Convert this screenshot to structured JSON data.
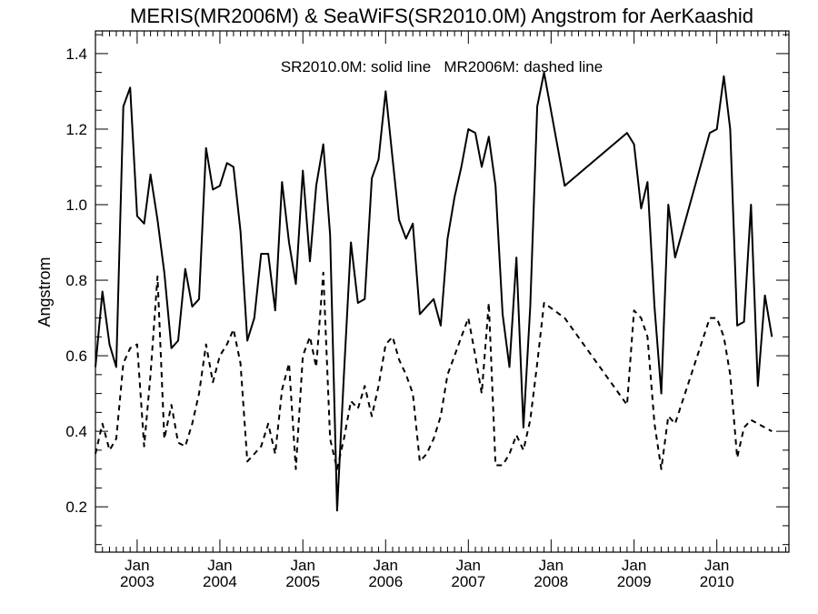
{
  "chart_data": {
    "type": "line",
    "title": "MERIS(MR2006M) & SeaWiFS(SR2010.0M)  Angstrom for AerKaashid",
    "annotation": "SR2010.0M: solid line   MR2006M: dashed line",
    "xlabel": "",
    "ylabel": "Angstrom",
    "xlim": [
      "2002-07-01",
      "2010-11-15"
    ],
    "ylim": [
      0.08,
      1.46
    ],
    "yticks": [
      "0.2",
      "0.4",
      "0.6",
      "0.8",
      "1.0",
      "1.2",
      "1.4"
    ],
    "x_month_labels": [
      "Jan",
      "Jan",
      "Jan",
      "Jan",
      "Jan",
      "Jan",
      "Jan",
      "Jan"
    ],
    "x_year_labels": [
      "2003",
      "2004",
      "2005",
      "2006",
      "2007",
      "2008",
      "2009",
      "2010"
    ],
    "x_year_dates": [
      "2003-01-01",
      "2004-01-01",
      "2005-01-01",
      "2006-01-01",
      "2007-01-01",
      "2008-01-01",
      "2009-01-01",
      "2010-01-01"
    ],
    "grid": false,
    "series": [
      {
        "name": "SR2010.0M",
        "style": "solid",
        "color": "#000000",
        "points": [
          [
            "2002-07-01",
            0.57
          ],
          [
            "2002-08-01",
            0.77
          ],
          [
            "2002-09-01",
            0.63
          ],
          [
            "2002-10-01",
            0.57
          ],
          [
            "2002-11-01",
            1.26
          ],
          [
            "2002-12-01",
            1.31
          ],
          [
            "2003-01-01",
            0.97
          ],
          [
            "2003-02-01",
            0.95
          ],
          [
            "2003-03-01",
            1.08
          ],
          [
            "2003-04-01",
            0.96
          ],
          [
            "2003-05-01",
            0.82
          ],
          [
            "2003-06-01",
            0.62
          ],
          [
            "2003-07-01",
            0.64
          ],
          [
            "2003-08-01",
            0.83
          ],
          [
            "2003-09-01",
            0.73
          ],
          [
            "2003-10-01",
            0.75
          ],
          [
            "2003-11-01",
            1.15
          ],
          [
            "2003-12-01",
            1.04
          ],
          [
            "2004-01-01",
            1.05
          ],
          [
            "2004-02-01",
            1.11
          ],
          [
            "2004-03-01",
            1.1
          ],
          [
            "2004-04-01",
            0.93
          ],
          [
            "2004-05-01",
            0.64
          ],
          [
            "2004-06-01",
            0.7
          ],
          [
            "2004-07-01",
            0.87
          ],
          [
            "2004-08-01",
            0.87
          ],
          [
            "2004-09-01",
            0.72
          ],
          [
            "2004-10-01",
            1.06
          ],
          [
            "2004-11-01",
            0.9
          ],
          [
            "2004-12-01",
            0.79
          ],
          [
            "2005-01-01",
            1.09
          ],
          [
            "2005-02-01",
            0.85
          ],
          [
            "2005-03-01",
            1.05
          ],
          [
            "2005-04-01",
            1.16
          ],
          [
            "2005-05-01",
            0.92
          ],
          [
            "2005-06-01",
            0.19
          ],
          [
            "2005-07-01",
            0.55
          ],
          [
            "2005-08-01",
            0.9
          ],
          [
            "2005-09-01",
            0.74
          ],
          [
            "2005-10-01",
            0.75
          ],
          [
            "2005-11-01",
            1.07
          ],
          [
            "2005-12-01",
            1.12
          ],
          [
            "2006-01-01",
            1.3
          ],
          [
            "2006-02-01",
            1.12
          ],
          [
            "2006-03-01",
            0.96
          ],
          [
            "2006-04-01",
            0.91
          ],
          [
            "2006-05-01",
            0.95
          ],
          [
            "2006-06-01",
            0.71
          ],
          [
            "2006-07-01",
            0.73
          ],
          [
            "2006-08-01",
            0.75
          ],
          [
            "2006-09-01",
            0.68
          ],
          [
            "2006-10-01",
            0.91
          ],
          [
            "2006-11-01",
            1.02
          ],
          [
            "2006-12-01",
            1.1
          ],
          [
            "2007-01-01",
            1.2
          ],
          [
            "2007-02-01",
            1.19
          ],
          [
            "2007-03-01",
            1.1
          ],
          [
            "2007-04-01",
            1.18
          ],
          [
            "2007-05-01",
            1.05
          ],
          [
            "2007-06-01",
            0.71
          ],
          [
            "2007-07-01",
            0.57
          ],
          [
            "2007-08-01",
            0.86
          ],
          [
            "2007-09-01",
            0.41
          ],
          [
            "2007-10-01",
            0.73
          ],
          [
            "2007-11-01",
            1.26
          ],
          [
            "2007-12-01",
            1.35
          ],
          [
            "2008-03-01",
            1.05
          ],
          [
            "2008-12-01",
            1.19
          ],
          [
            "2009-01-01",
            1.16
          ],
          [
            "2009-02-01",
            0.99
          ],
          [
            "2009-03-01",
            1.06
          ],
          [
            "2009-04-01",
            0.73
          ],
          [
            "2009-05-01",
            0.5
          ],
          [
            "2009-06-01",
            1.0
          ],
          [
            "2009-07-01",
            0.86
          ],
          [
            "2009-12-01",
            1.19
          ],
          [
            "2010-01-01",
            1.2
          ],
          [
            "2010-02-01",
            1.34
          ],
          [
            "2010-03-01",
            1.2
          ],
          [
            "2010-04-01",
            0.68
          ],
          [
            "2010-05-01",
            0.69
          ],
          [
            "2010-06-01",
            1.0
          ],
          [
            "2010-07-01",
            0.52
          ],
          [
            "2010-08-01",
            0.76
          ],
          [
            "2010-09-01",
            0.65
          ]
        ]
      },
      {
        "name": "MR2006M",
        "style": "dashed",
        "color": "#000000",
        "points": [
          [
            "2002-07-01",
            0.34
          ],
          [
            "2002-08-01",
            0.42
          ],
          [
            "2002-09-01",
            0.35
          ],
          [
            "2002-10-01",
            0.38
          ],
          [
            "2002-11-01",
            0.58
          ],
          [
            "2002-12-01",
            0.62
          ],
          [
            "2003-01-01",
            0.63
          ],
          [
            "2003-02-01",
            0.36
          ],
          [
            "2003-03-01",
            0.55
          ],
          [
            "2003-04-01",
            0.81
          ],
          [
            "2003-05-01",
            0.38
          ],
          [
            "2003-06-01",
            0.47
          ],
          [
            "2003-07-01",
            0.37
          ],
          [
            "2003-08-01",
            0.36
          ],
          [
            "2003-09-01",
            0.42
          ],
          [
            "2003-10-01",
            0.5
          ],
          [
            "2003-11-01",
            0.63
          ],
          [
            "2003-12-01",
            0.53
          ],
          [
            "2004-01-01",
            0.6
          ],
          [
            "2004-02-01",
            0.63
          ],
          [
            "2004-03-01",
            0.67
          ],
          [
            "2004-04-01",
            0.58
          ],
          [
            "2004-05-01",
            0.32
          ],
          [
            "2004-06-01",
            0.34
          ],
          [
            "2004-07-01",
            0.36
          ],
          [
            "2004-08-01",
            0.42
          ],
          [
            "2004-09-01",
            0.34
          ],
          [
            "2004-10-01",
            0.51
          ],
          [
            "2004-11-01",
            0.58
          ],
          [
            "2004-12-01",
            0.3
          ],
          [
            "2005-01-01",
            0.6
          ],
          [
            "2005-02-01",
            0.65
          ],
          [
            "2005-03-01",
            0.57
          ],
          [
            "2005-04-01",
            0.82
          ],
          [
            "2005-05-01",
            0.38
          ],
          [
            "2005-06-01",
            0.3
          ],
          [
            "2005-07-01",
            0.38
          ],
          [
            "2005-08-01",
            0.48
          ],
          [
            "2005-09-01",
            0.46
          ],
          [
            "2005-10-01",
            0.52
          ],
          [
            "2005-11-01",
            0.44
          ],
          [
            "2005-12-01",
            0.52
          ],
          [
            "2006-01-01",
            0.63
          ],
          [
            "2006-02-01",
            0.65
          ],
          [
            "2006-03-01",
            0.59
          ],
          [
            "2006-04-01",
            0.55
          ],
          [
            "2006-05-01",
            0.5
          ],
          [
            "2006-06-01",
            0.32
          ],
          [
            "2006-07-01",
            0.34
          ],
          [
            "2006-08-01",
            0.38
          ],
          [
            "2006-09-01",
            0.44
          ],
          [
            "2006-10-01",
            0.55
          ],
          [
            "2006-11-01",
            0.6
          ],
          [
            "2006-12-01",
            0.65
          ],
          [
            "2007-01-01",
            0.7
          ],
          [
            "2007-02-01",
            0.6
          ],
          [
            "2007-03-01",
            0.5
          ],
          [
            "2007-04-01",
            0.74
          ],
          [
            "2007-05-01",
            0.31
          ],
          [
            "2007-06-01",
            0.31
          ],
          [
            "2007-07-01",
            0.34
          ],
          [
            "2007-08-01",
            0.39
          ],
          [
            "2007-09-01",
            0.35
          ],
          [
            "2007-10-01",
            0.43
          ],
          [
            "2007-11-01",
            0.58
          ],
          [
            "2007-12-01",
            0.74
          ],
          [
            "2008-03-01",
            0.7
          ],
          [
            "2008-12-01",
            0.47
          ],
          [
            "2009-01-01",
            0.72
          ],
          [
            "2009-02-01",
            0.7
          ],
          [
            "2009-03-01",
            0.65
          ],
          [
            "2009-04-01",
            0.42
          ],
          [
            "2009-05-01",
            0.3
          ],
          [
            "2009-06-01",
            0.44
          ],
          [
            "2009-07-01",
            0.42
          ],
          [
            "2009-12-01",
            0.7
          ],
          [
            "2010-01-01",
            0.7
          ],
          [
            "2010-02-01",
            0.65
          ],
          [
            "2010-03-01",
            0.55
          ],
          [
            "2010-04-01",
            0.33
          ],
          [
            "2010-05-01",
            0.41
          ],
          [
            "2010-06-01",
            0.43
          ],
          [
            "2010-07-01",
            0.42
          ],
          [
            "2010-08-01",
            0.41
          ],
          [
            "2010-09-01",
            0.4
          ]
        ]
      }
    ]
  }
}
